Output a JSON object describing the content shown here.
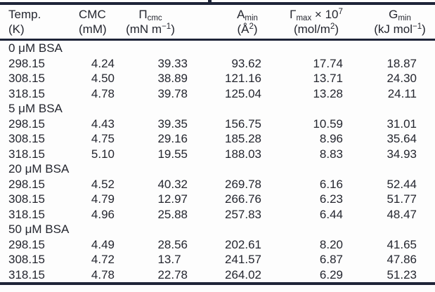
{
  "colors": {
    "rule": "#1e2438",
    "text": "#24262f",
    "background": "#fdfdfd"
  },
  "table": {
    "columns": [
      {
        "sym": "Temp.",
        "unit1": "(K)"
      },
      {
        "sym": "CMC",
        "unit1": "(mM)"
      },
      {
        "sym": "Π",
        "sub": "cmc",
        "unit1": "(mN m",
        "unit_sup": "−1",
        "unit2": ")"
      },
      {
        "sym": "A",
        "sub": "min",
        "unit1": "(Å",
        "unit_sup": "2",
        "unit2": ")"
      },
      {
        "sym": "Γ",
        "sub": "max",
        "tail": " × 10",
        "tail_sup": "7",
        "unit1": "(mol/m",
        "unit_sup": "2",
        "unit2": ")"
      },
      {
        "sym": "G",
        "sub": "min",
        "unit1": "(kJ mol",
        "unit_sup": "−1",
        "unit2": ")"
      }
    ],
    "groups": [
      {
        "label": "0 μM BSA",
        "rows": [
          [
            "298.15",
            "4.24",
            "39.33",
            "93.62",
            "17.74",
            "18.87"
          ],
          [
            "308.15",
            "4.50",
            "38.89",
            "121.16",
            "13.71",
            "24.30"
          ],
          [
            "318.15",
            "4.78",
            "39.78",
            "125.04",
            "13.28",
            "24.11"
          ]
        ]
      },
      {
        "label": "5 μM BSA",
        "rows": [
          [
            "298.15",
            "4.43",
            "39.35",
            "156.75",
            "10.59",
            "31.01"
          ],
          [
            "308.15",
            "4.75",
            "29.16",
            "185.28",
            "8.96",
            "35.64"
          ],
          [
            "318.15",
            "5.10",
            "19.55",
            "188.03",
            "8.83",
            "34.93"
          ]
        ]
      },
      {
        "label": "20 μM BSA",
        "rows": [
          [
            "298.15",
            "4.52",
            "40.32",
            "269.78",
            "6.16",
            "52.44"
          ],
          [
            "308.15",
            "4.79",
            "12.97",
            "266.76",
            "6.23",
            "51.77"
          ],
          [
            "318.15",
            "4.96",
            "25.88",
            "257.83",
            "6.44",
            "48.47"
          ]
        ]
      },
      {
        "label": "50 μM BSA",
        "rows": [
          [
            "298.15",
            "4.49",
            "28.56",
            "202.61",
            "8.20",
            "41.65"
          ],
          [
            "308.15",
            "4.72",
            "13.7",
            "241.57",
            "6.87",
            "47.86"
          ],
          [
            "318.15",
            "4.78",
            "22.78",
            "264.02",
            "6.29",
            "51.23"
          ]
        ]
      }
    ]
  }
}
